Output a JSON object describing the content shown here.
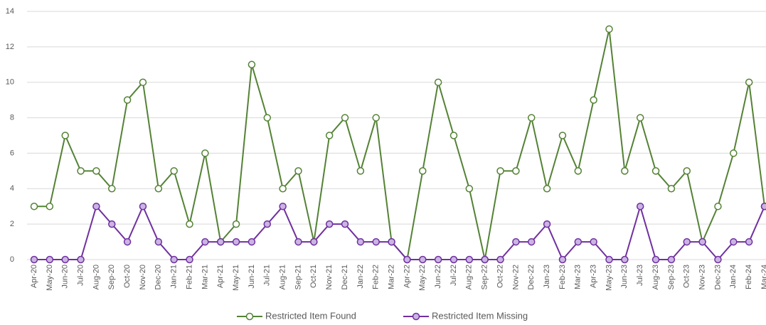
{
  "chart_data": {
    "type": "line",
    "categories": [
      "Apr-20",
      "May-20",
      "Jun-20",
      "Jul-20",
      "Aug-20",
      "Sep-20",
      "Oct-20",
      "Nov-20",
      "Dec-20",
      "Jan-21",
      "Feb-21",
      "Mar-21",
      "Apr-21",
      "May-21",
      "Jun-21",
      "Jul-21",
      "Aug-21",
      "Sep-21",
      "Oct-21",
      "Nov-21",
      "Dec-21",
      "Jan-22",
      "Feb-22",
      "Mar-22",
      "Apr-22",
      "May-22",
      "Jun-22",
      "Jul-22",
      "Aug-22",
      "Sep-22",
      "Oct-22",
      "Nov-22",
      "Dec-22",
      "Jan-23",
      "Feb-23",
      "Mar-23",
      "Apr-23",
      "May-23",
      "Jun-23",
      "Jul-23",
      "Aug-23",
      "Sep-23",
      "Oct-23",
      "Nov-23",
      "Dec-23",
      "Jan-24",
      "Feb-24",
      "Mar-24"
    ],
    "series": [
      {
        "name": "Restricted Item Found",
        "color": "#548235",
        "values": [
          3,
          3,
          7,
          5,
          5,
          4,
          9,
          10,
          4,
          5,
          2,
          6,
          1,
          2,
          11,
          8,
          4,
          5,
          1,
          7,
          8,
          5,
          8,
          1,
          0,
          5,
          10,
          7,
          4,
          0,
          5,
          5,
          8,
          4,
          7,
          5,
          9,
          13,
          5,
          8,
          5,
          4,
          5,
          1,
          3,
          6,
          10,
          3
        ]
      },
      {
        "name": "Restricted Item Missing",
        "color": "#7030a0",
        "values": [
          0,
          0,
          0,
          0,
          3,
          2,
          1,
          3,
          1,
          0,
          0,
          1,
          1,
          1,
          1,
          2,
          3,
          1,
          1,
          2,
          2,
          1,
          1,
          1,
          0,
          0,
          0,
          0,
          0,
          0,
          0,
          1,
          1,
          2,
          0,
          1,
          1,
          0,
          0,
          3,
          0,
          0,
          1,
          1,
          0,
          1,
          1,
          3
        ]
      }
    ],
    "ylim": [
      0,
      14
    ],
    "yticks": [
      0,
      2,
      4,
      6,
      8,
      10,
      12,
      14
    ],
    "grid": true,
    "legend": "bottom"
  }
}
